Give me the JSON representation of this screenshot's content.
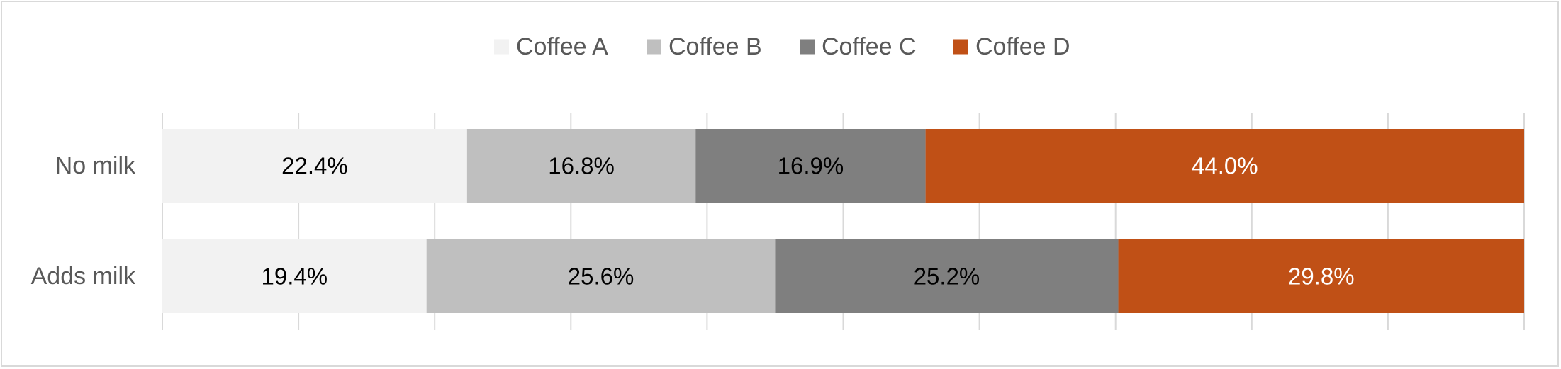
{
  "chart_data": {
    "type": "bar",
    "orientation": "horizontal",
    "stacked": "100%",
    "categories": [
      "No milk",
      "Adds milk"
    ],
    "series": [
      {
        "name": "Coffee A",
        "color": "#f2f2f2",
        "label_color": "#000000",
        "values": [
          22.4,
          19.4
        ],
        "labels": [
          "22.4%",
          "19.4%"
        ]
      },
      {
        "name": "Coffee B",
        "color": "#bfbfbf",
        "label_color": "#000000",
        "values": [
          16.8,
          25.6
        ],
        "labels": [
          "16.8%",
          "25.6%"
        ]
      },
      {
        "name": "Coffee C",
        "color": "#7f7f7f",
        "label_color": "#000000",
        "values": [
          16.9,
          25.2
        ],
        "labels": [
          "16.9%",
          "25.2%"
        ]
      },
      {
        "name": "Coffee D",
        "color": "#c05016",
        "label_color": "#ffffff",
        "values": [
          44.0,
          29.8
        ],
        "labels": [
          "44.0%",
          "29.8%"
        ]
      }
    ],
    "xlim": [
      0,
      100
    ],
    "x_gridlines": [
      0,
      10,
      20,
      30,
      40,
      50,
      60,
      70,
      80,
      90,
      100
    ],
    "grid": true,
    "legend_position": "top",
    "title": "",
    "xlabel": "",
    "ylabel": ""
  },
  "colors": {
    "gridline": "#d9d9d9",
    "text": "#595959",
    "border": "#d9d9d9"
  }
}
